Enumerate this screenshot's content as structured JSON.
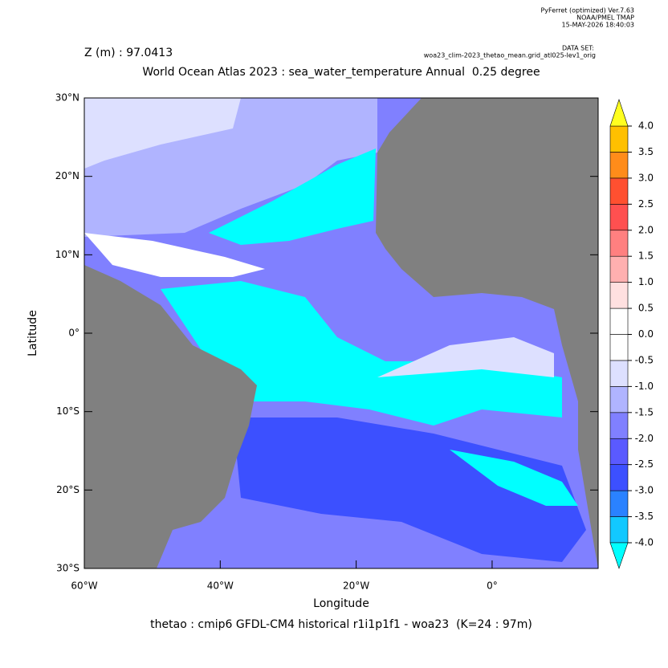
{
  "header": {
    "software": "PyFerret (optimized) Ver.7.63",
    "org": "NOAA/PMEL TMAP",
    "date": "15-MAY-2026 18:40:03",
    "dataset_label": "DATA SET:",
    "dataset": "woa23_clim-2023_thetao_mean.grid_atl025-lev1_orig"
  },
  "depth_label": "Z (m) : 97.0413",
  "title": "World Ocean Atlas 2023 : sea_water_temperature Annual  0.25 degree",
  "footer": "thetao : cmip6 GFDL-CM4 historical r1i1p1f1 - woa23  (K=24 : 97m)",
  "map": {
    "xlabel": "Longitude",
    "ylabel": "Latitude",
    "xlim": [
      -60,
      15.6
    ],
    "ylim": [
      -30,
      30
    ],
    "xticks": [
      {
        "value": -60,
        "label": "60°W"
      },
      {
        "value": -40,
        "label": "40°W"
      },
      {
        "value": -20,
        "label": "20°W"
      },
      {
        "value": 0,
        "label": "0°"
      }
    ],
    "yticks": [
      {
        "value": -30,
        "label": "30°S"
      },
      {
        "value": -20,
        "label": "20°S"
      },
      {
        "value": -10,
        "label": "10°S"
      },
      {
        "value": 0,
        "label": "0°"
      },
      {
        "value": 10,
        "label": "10°N"
      },
      {
        "value": 20,
        "label": "20°N"
      },
      {
        "value": 30,
        "label": "30°N"
      }
    ]
  },
  "colorbar": {
    "levels": [
      {
        "value": -4,
        "label": "-4.0"
      },
      -3.5,
      {
        "value": -3,
        "label": "-3.0"
      },
      -2.5,
      {
        "value": -2,
        "label": "-2.0"
      },
      -1.5,
      {
        "value": -1,
        "label": "-1.0"
      },
      -0.5,
      {
        "value": 0,
        "label": "0.0"
      },
      0.5,
      {
        "value": 1,
        "label": "1.0"
      },
      1.5,
      {
        "value": 2,
        "label": "2.0"
      },
      2.5,
      {
        "value": 3,
        "label": "3.0"
      },
      3.5,
      {
        "value": 4,
        "label": "4.0"
      }
    ],
    "colors": [
      "#12c8ff",
      "#2a82ff",
      "#3c50ff",
      "#5a5aff",
      "#8080ff",
      "#b0b4ff",
      "#dde0ff",
      "#ffffff",
      "#ffffff",
      "#ffe0e0",
      "#ffb0b0",
      "#ff8080",
      "#ff5050",
      "#ff5030",
      "#ff8c1a",
      "#ffc000"
    ],
    "under_color": "#00ffff",
    "over_color": "#ffff20"
  }
}
